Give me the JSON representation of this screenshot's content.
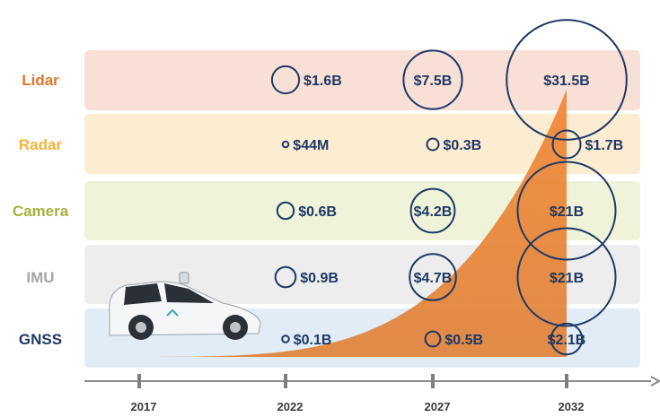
{
  "chart_data": {
    "type": "bubble-timeline",
    "title": "",
    "x": [
      "2017",
      "2022",
      "2027",
      "2032"
    ],
    "rows": [
      {
        "name": "Lidar",
        "color": "#e0782b",
        "band": "#f9e0d6",
        "values": [
          {
            "year": "2022",
            "label": "$1.6B",
            "value": 1.6
          },
          {
            "year": "2027",
            "label": "$7.5B",
            "value": 7.5
          },
          {
            "year": "2032",
            "label": "$31.5B",
            "value": 31.5
          }
        ]
      },
      {
        "name": "Radar",
        "color": "#f2b43c",
        "band": "#fbecd2",
        "values": [
          {
            "year": "2022",
            "label": "$44M",
            "value": 0.044
          },
          {
            "year": "2027",
            "label": "$0.3B",
            "value": 0.3
          },
          {
            "year": "2032",
            "label": "$1.7B",
            "value": 1.7
          }
        ]
      },
      {
        "name": "Camera",
        "color": "#a3b13c",
        "band": "#eef3d9",
        "values": [
          {
            "year": "2022",
            "label": "$0.6B",
            "value": 0.6
          },
          {
            "year": "2027",
            "label": "$4.2B",
            "value": 4.2
          },
          {
            "year": "2032",
            "label": "$21B",
            "value": 21
          }
        ]
      },
      {
        "name": "IMU",
        "color": "#a6a6a6",
        "band": "#ededed",
        "values": [
          {
            "year": "2022",
            "label": "$0.9B",
            "value": 0.9
          },
          {
            "year": "2027",
            "label": "$4.7B",
            "value": 4.7
          },
          {
            "year": "2032",
            "label": "$21B",
            "value": 21
          }
        ]
      },
      {
        "name": "GNSS",
        "color": "#1f3864",
        "band": "#e2ecf6",
        "values": [
          {
            "year": "2022",
            "label": "$0.1B",
            "value": 0.1
          },
          {
            "year": "2027",
            "label": "$0.5B",
            "value": 0.5
          },
          {
            "year": "2032",
            "label": "$2.1B",
            "value": 2.1
          }
        ]
      }
    ],
    "bubble_color": "#1f3864",
    "area_color": "#e57e2f"
  }
}
